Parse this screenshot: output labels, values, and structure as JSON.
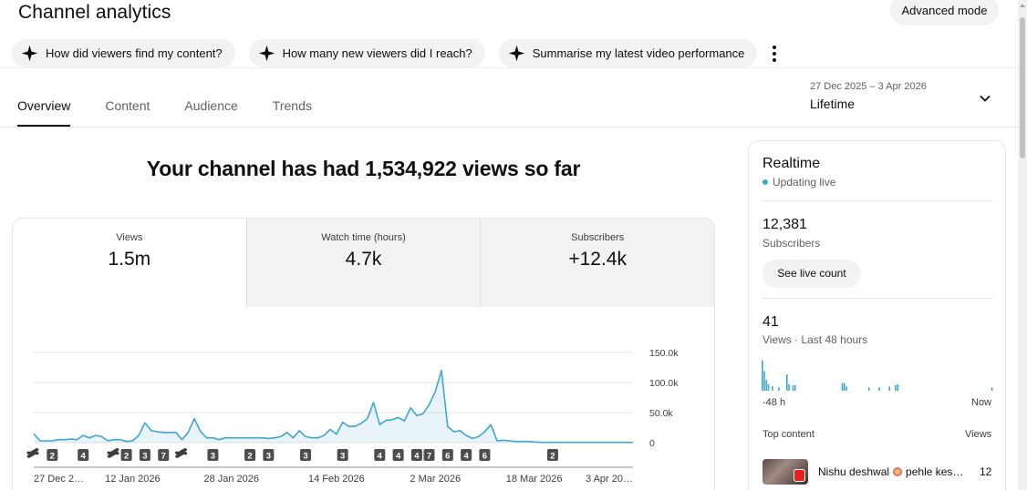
{
  "header": {
    "title": "Channel analytics",
    "advanced_mode": "Advanced mode"
  },
  "chips": [
    {
      "label": "How did viewers find my content?",
      "icon": "sparkle-icon"
    },
    {
      "label": "How many new viewers did I reach?",
      "icon": "sparkle-icon"
    },
    {
      "label": "Summarise my latest video performance",
      "icon": "sparkle-icon"
    }
  ],
  "tabs": [
    "Overview",
    "Content",
    "Audience",
    "Trends"
  ],
  "active_tab": "Overview",
  "date_picker": {
    "range": "27 Dec 2025 – 3 Apr 2026",
    "label": "Lifetime"
  },
  "headline": "Your channel has had 1,534,922 views so far",
  "metrics": [
    {
      "label": "Views",
      "value": "1.5m"
    },
    {
      "label": "Watch time (hours)",
      "value": "4.7k"
    },
    {
      "label": "Subscribers",
      "value": "+12.4k"
    }
  ],
  "chart_data": {
    "type": "area",
    "series": [
      {
        "color": "#3ea6d1",
        "x": [
          "2025-12-27",
          "2025-12-28",
          "2025-12-29",
          "2025-12-30",
          "2025-12-31",
          "2026-01-01",
          "2026-01-02",
          "2026-01-03",
          "2026-01-04",
          "2026-01-05",
          "2026-01-06",
          "2026-01-07",
          "2026-01-08",
          "2026-01-09",
          "2026-01-10",
          "2026-01-11",
          "2026-01-12",
          "2026-01-13",
          "2026-01-14",
          "2026-01-15",
          "2026-01-16",
          "2026-01-17",
          "2026-01-18",
          "2026-01-19",
          "2026-01-20",
          "2026-01-21",
          "2026-01-22",
          "2026-01-23",
          "2026-01-24",
          "2026-01-25",
          "2026-01-26",
          "2026-01-27",
          "2026-01-28",
          "2026-01-29",
          "2026-01-30",
          "2026-01-31",
          "2026-02-01",
          "2026-02-02",
          "2026-02-03",
          "2026-02-04",
          "2026-02-05",
          "2026-02-06",
          "2026-02-07",
          "2026-02-08",
          "2026-02-09",
          "2026-02-10",
          "2026-02-11",
          "2026-02-12",
          "2026-02-13",
          "2026-02-14",
          "2026-02-15",
          "2026-02-16",
          "2026-02-17",
          "2026-02-18",
          "2026-02-19",
          "2026-02-20",
          "2026-02-21",
          "2026-02-22",
          "2026-02-23",
          "2026-02-24",
          "2026-02-25",
          "2026-02-26",
          "2026-02-27",
          "2026-02-28",
          "2026-03-01",
          "2026-03-02",
          "2026-03-03",
          "2026-03-04",
          "2026-03-05",
          "2026-03-06",
          "2026-03-07",
          "2026-03-08",
          "2026-03-09",
          "2026-03-10",
          "2026-03-11",
          "2026-03-12",
          "2026-03-13",
          "2026-03-14",
          "2026-03-15",
          "2026-03-16",
          "2026-03-17",
          "2026-03-18",
          "2026-03-19",
          "2026-03-20",
          "2026-03-21",
          "2026-03-22",
          "2026-03-23",
          "2026-03-24",
          "2026-03-25",
          "2026-03-26",
          "2026-03-27",
          "2026-03-28",
          "2026-03-29",
          "2026-03-30",
          "2026-03-31",
          "2026-04-01",
          "2026-04-02",
          "2026-04-03"
        ],
        "values": [
          15000,
          3000,
          3000,
          3000,
          5000,
          5000,
          6000,
          5000,
          12000,
          8000,
          12000,
          10000,
          3000,
          5000,
          5000,
          2000,
          3000,
          12000,
          33000,
          20000,
          18000,
          17000,
          17000,
          17000,
          5000,
          17000,
          40000,
          18000,
          8000,
          8000,
          5000,
          8000,
          8000,
          8000,
          8000,
          8000,
          8000,
          8000,
          7000,
          8000,
          10000,
          17000,
          8000,
          20000,
          10000,
          8000,
          8000,
          12000,
          22000,
          14000,
          34000,
          27000,
          27000,
          32000,
          40000,
          67000,
          30000,
          37000,
          38000,
          42000,
          36000,
          58000,
          45000,
          48000,
          63000,
          85000,
          120000,
          27000,
          18000,
          20000,
          12000,
          7000,
          10000,
          18000,
          30000,
          3000,
          4000,
          3000,
          2000,
          2000,
          2000,
          1000,
          500,
          500,
          500,
          500,
          500,
          500,
          500,
          500,
          500,
          500,
          500,
          500,
          500,
          500,
          500,
          500
        ]
      }
    ],
    "x_tick_labels": [
      "27 Dec 2…",
      "12 Jan 2026",
      "28 Jan 2026",
      "14 Feb 2026",
      "2 Mar 2026",
      "18 Mar 2026",
      "3 Apr 20…"
    ],
    "y_tick_labels": [
      "150.0k",
      "100.0k",
      "50.0k",
      "0"
    ],
    "ylim": [
      0,
      150000
    ],
    "grid": true,
    "markers": [
      {
        "x": "2025-12-27",
        "label": "",
        "kind": "shorts"
      },
      {
        "x": "2025-12-30",
        "label": "2",
        "kind": "count"
      },
      {
        "x": "2026-01-04",
        "label": "4",
        "kind": "count"
      },
      {
        "x": "2026-01-09",
        "label": "",
        "kind": "shorts"
      },
      {
        "x": "2026-01-11",
        "label": "2",
        "kind": "count"
      },
      {
        "x": "2026-01-14",
        "label": "3",
        "kind": "count"
      },
      {
        "x": "2026-01-17",
        "label": "7",
        "kind": "count"
      },
      {
        "x": "2026-01-20",
        "label": "",
        "kind": "shorts"
      },
      {
        "x": "2026-01-25",
        "label": "3",
        "kind": "count"
      },
      {
        "x": "2026-01-31",
        "label": "2",
        "kind": "count"
      },
      {
        "x": "2026-02-03",
        "label": "3",
        "kind": "count"
      },
      {
        "x": "2026-02-09",
        "label": "3",
        "kind": "count"
      },
      {
        "x": "2026-02-15",
        "label": "3",
        "kind": "count"
      },
      {
        "x": "2026-02-21",
        "label": "4",
        "kind": "count"
      },
      {
        "x": "2026-02-24",
        "label": "4",
        "kind": "count"
      },
      {
        "x": "2026-02-27",
        "label": "4",
        "kind": "count"
      },
      {
        "x": "2026-03-01",
        "label": "7",
        "kind": "count"
      },
      {
        "x": "2026-03-04",
        "label": "6",
        "kind": "count"
      },
      {
        "x": "2026-03-07",
        "label": "4",
        "kind": "count"
      },
      {
        "x": "2026-03-10",
        "label": "6",
        "kind": "count"
      },
      {
        "x": "2026-03-21",
        "label": "2",
        "kind": "count"
      }
    ]
  },
  "realtime": {
    "title": "Realtime",
    "status": "Updating live",
    "subscribers_value": "12,381",
    "subscribers_label": "Subscribers",
    "live_count_button": "See live count",
    "views_value": "41",
    "views_label": "Views · Last 48 hours",
    "bars": [
      28,
      18,
      10,
      6,
      0,
      4,
      0,
      0,
      3,
      0,
      0,
      0,
      15,
      6,
      0,
      5,
      5,
      0,
      0,
      0,
      0,
      0,
      0,
      0,
      0,
      0,
      0,
      0,
      0,
      0,
      0,
      0,
      0,
      0,
      0,
      0,
      0,
      0,
      0,
      7,
      7,
      4,
      0,
      0,
      0,
      0,
      0,
      0,
      0,
      0,
      0,
      0,
      3,
      0,
      0,
      0,
      0,
      3,
      0,
      0,
      0,
      0,
      4,
      0,
      0,
      5,
      6,
      0,
      0,
      0,
      0,
      0,
      0,
      0,
      0,
      0,
      0,
      0,
      0,
      0,
      0,
      0,
      0,
      0,
      0,
      0,
      0,
      0,
      0,
      0,
      0,
      0,
      0,
      0,
      0,
      0,
      0,
      0,
      0,
      0,
      0,
      0,
      0,
      0,
      0,
      0,
      0,
      0,
      0,
      0,
      0,
      0,
      3
    ],
    "axis_left": "-48 h",
    "axis_right": "Now",
    "top_content_label": "Top content",
    "top_content_views_label": "Views",
    "top_items": [
      {
        "title_start": "Nishu deshwal",
        "title_end": "pehle kes…",
        "views": "12"
      }
    ]
  }
}
